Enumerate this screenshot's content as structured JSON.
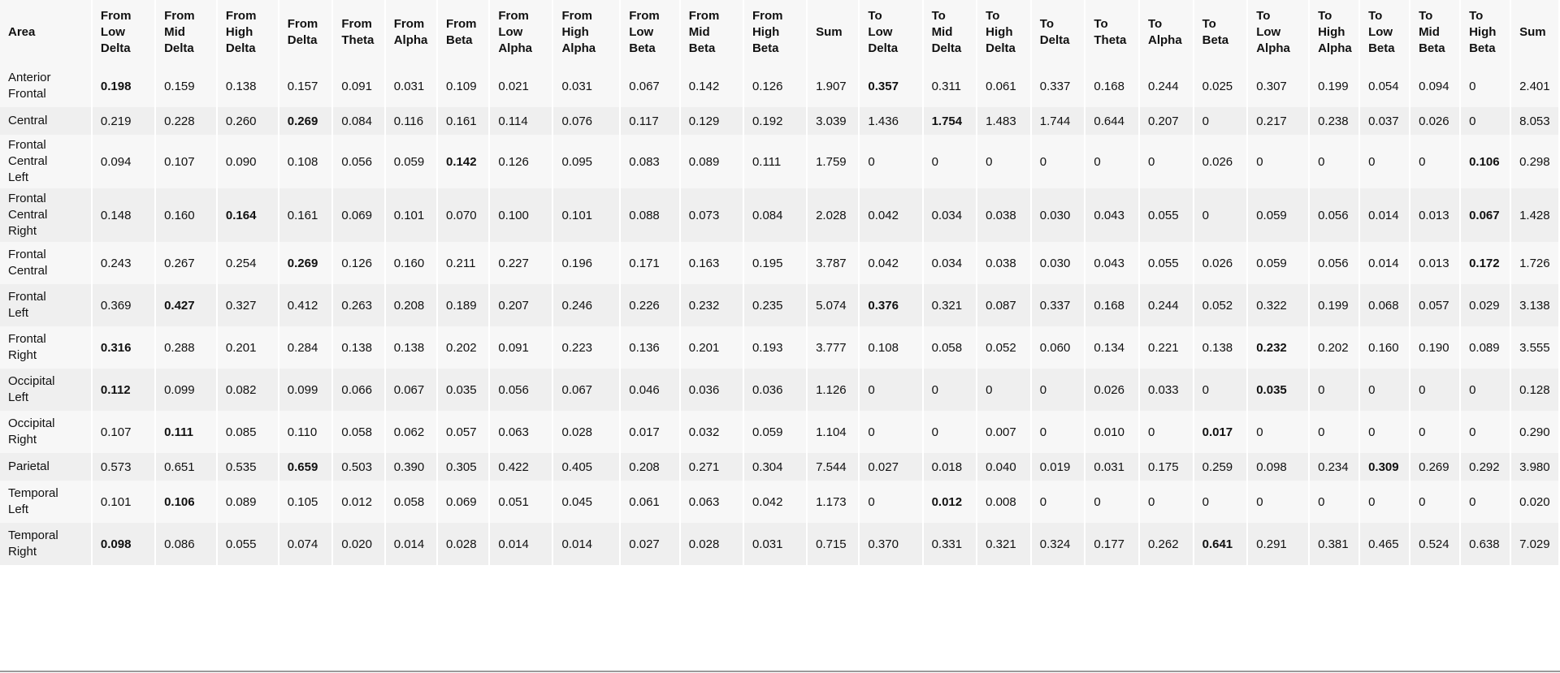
{
  "table": {
    "headers": [
      [
        "Area"
      ],
      [
        "From",
        "Low",
        "Delta"
      ],
      [
        "From",
        "Mid",
        "Delta"
      ],
      [
        "From",
        "High",
        "Delta"
      ],
      [
        "From",
        "Delta"
      ],
      [
        "From",
        "Theta"
      ],
      [
        "From",
        "Alpha"
      ],
      [
        "From",
        "Beta"
      ],
      [
        "From",
        "Low",
        "Alpha"
      ],
      [
        "From",
        "High",
        "Alpha"
      ],
      [
        "From",
        "Low",
        "Beta"
      ],
      [
        "From",
        "Mid",
        "Beta"
      ],
      [
        "From",
        "High",
        "Beta"
      ],
      [
        "Sum"
      ],
      [
        "To",
        "Low",
        "Delta"
      ],
      [
        "To",
        "Mid",
        "Delta"
      ],
      [
        "To",
        "High",
        "Delta"
      ],
      [
        "To",
        "Delta"
      ],
      [
        "To",
        "Theta"
      ],
      [
        "To",
        "Alpha"
      ],
      [
        "To",
        "Beta"
      ],
      [
        "To",
        "Low",
        "Alpha"
      ],
      [
        "To",
        "High",
        "Alpha"
      ],
      [
        "To",
        "Low",
        "Beta"
      ],
      [
        "To",
        "Mid",
        "Beta"
      ],
      [
        "To",
        "High",
        "Beta"
      ],
      [
        "Sum"
      ]
    ],
    "rows": [
      {
        "area": [
          "Anterior",
          "Frontal"
        ],
        "cells": [
          "0.198",
          "0.159",
          "0.138",
          "0.157",
          "0.091",
          "0.031",
          "0.109",
          "0.021",
          "0.031",
          "0.067",
          "0.142",
          "0.126",
          "1.907",
          "0.357",
          "0.311",
          "0.061",
          "0.337",
          "0.168",
          "0.244",
          "0.025",
          "0.307",
          "0.199",
          "0.054",
          "0.094",
          "0",
          "2.401"
        ],
        "bold": [
          0,
          13
        ]
      },
      {
        "area": [
          "Central"
        ],
        "cells": [
          "0.219",
          "0.228",
          "0.260",
          "0.269",
          "0.084",
          "0.116",
          "0.161",
          "0.114",
          "0.076",
          "0.117",
          "0.129",
          "0.192",
          "3.039",
          "1.436",
          "1.754",
          "1.483",
          "1.744",
          "0.644",
          "0.207",
          "0",
          "0.217",
          "0.238",
          "0.037",
          "0.026",
          "0",
          "8.053"
        ],
        "bold": [
          3,
          14
        ]
      },
      {
        "area": [
          "Frontal",
          "Central",
          "Left"
        ],
        "cells": [
          "0.094",
          "0.107",
          "0.090",
          "0.108",
          "0.056",
          "0.059",
          "0.142",
          "0.126",
          "0.095",
          "0.083",
          "0.089",
          "0.111",
          "1.759",
          "0",
          "0",
          "0",
          "0",
          "0",
          "0",
          "0.026",
          "0",
          "0",
          "0",
          "0",
          "0.106",
          "0.298"
        ],
        "bold": [
          6,
          24
        ]
      },
      {
        "area": [
          "Frontal",
          "Central",
          "Right"
        ],
        "cells": [
          "0.148",
          "0.160",
          "0.164",
          "0.161",
          "0.069",
          "0.101",
          "0.070",
          "0.100",
          "0.101",
          "0.088",
          "0.073",
          "0.084",
          "2.028",
          "0.042",
          "0.034",
          "0.038",
          "0.030",
          "0.043",
          "0.055",
          "0",
          "0.059",
          "0.056",
          "0.014",
          "0.013",
          "0.067",
          "1.428"
        ],
        "bold": [
          2,
          24
        ]
      },
      {
        "area": [
          "Frontal",
          "Central"
        ],
        "cells": [
          "0.243",
          "0.267",
          "0.254",
          "0.269",
          "0.126",
          "0.160",
          "0.211",
          "0.227",
          "0.196",
          "0.171",
          "0.163",
          "0.195",
          "3.787",
          "0.042",
          "0.034",
          "0.038",
          "0.030",
          "0.043",
          "0.055",
          "0.026",
          "0.059",
          "0.056",
          "0.014",
          "0.013",
          "0.172",
          "1.726"
        ],
        "bold": [
          3,
          24
        ]
      },
      {
        "area": [
          "Frontal",
          "Left"
        ],
        "cells": [
          "0.369",
          "0.427",
          "0.327",
          "0.412",
          "0.263",
          "0.208",
          "0.189",
          "0.207",
          "0.246",
          "0.226",
          "0.232",
          "0.235",
          "5.074",
          "0.376",
          "0.321",
          "0.087",
          "0.337",
          "0.168",
          "0.244",
          "0.052",
          "0.322",
          "0.199",
          "0.068",
          "0.057",
          "0.029",
          "3.138"
        ],
        "bold": [
          1,
          13
        ]
      },
      {
        "area": [
          "Frontal",
          "Right"
        ],
        "cells": [
          "0.316",
          "0.288",
          "0.201",
          "0.284",
          "0.138",
          "0.138",
          "0.202",
          "0.091",
          "0.223",
          "0.136",
          "0.201",
          "0.193",
          "3.777",
          "0.108",
          "0.058",
          "0.052",
          "0.060",
          "0.134",
          "0.221",
          "0.138",
          "0.232",
          "0.202",
          "0.160",
          "0.190",
          "0.089",
          "3.555"
        ],
        "bold": [
          0,
          20
        ]
      },
      {
        "area": [
          "Occipital",
          "Left"
        ],
        "cells": [
          "0.112",
          "0.099",
          "0.082",
          "0.099",
          "0.066",
          "0.067",
          "0.035",
          "0.056",
          "0.067",
          "0.046",
          "0.036",
          "0.036",
          "1.126",
          "0",
          "0",
          "0",
          "0",
          "0.026",
          "0.033",
          "0",
          "0.035",
          "0",
          "0",
          "0",
          "0",
          "0.128"
        ],
        "bold": [
          0,
          20
        ]
      },
      {
        "area": [
          "Occipital",
          "Right"
        ],
        "cells": [
          "0.107",
          "0.111",
          "0.085",
          "0.110",
          "0.058",
          "0.062",
          "0.057",
          "0.063",
          "0.028",
          "0.017",
          "0.032",
          "0.059",
          "1.104",
          "0",
          "0",
          "0.007",
          "0",
          "0.010",
          "0",
          "0.017",
          "0",
          "0",
          "0",
          "0",
          "0",
          "0.290"
        ],
        "bold": [
          1,
          19
        ]
      },
      {
        "area": [
          "Parietal"
        ],
        "cells": [
          "0.573",
          "0.651",
          "0.535",
          "0.659",
          "0.503",
          "0.390",
          "0.305",
          "0.422",
          "0.405",
          "0.208",
          "0.271",
          "0.304",
          "7.544",
          "0.027",
          "0.018",
          "0.040",
          "0.019",
          "0.031",
          "0.175",
          "0.259",
          "0.098",
          "0.234",
          "0.309",
          "0.269",
          "0.292",
          "3.980"
        ],
        "bold": [
          3,
          22
        ]
      },
      {
        "area": [
          "Temporal",
          "Left"
        ],
        "cells": [
          "0.101",
          "0.106",
          "0.089",
          "0.105",
          "0.012",
          "0.058",
          "0.069",
          "0.051",
          "0.045",
          "0.061",
          "0.063",
          "0.042",
          "1.173",
          "0",
          "0.012",
          "0.008",
          "0",
          "0",
          "0",
          "0",
          "0",
          "0",
          "0",
          "0",
          "0",
          "0.020"
        ],
        "bold": [
          1,
          14
        ]
      },
      {
        "area": [
          "Temporal",
          "Right"
        ],
        "cells": [
          "0.098",
          "0.086",
          "0.055",
          "0.074",
          "0.020",
          "0.014",
          "0.028",
          "0.014",
          "0.014",
          "0.027",
          "0.028",
          "0.031",
          "0.715",
          "0.370",
          "0.331",
          "0.321",
          "0.324",
          "0.177",
          "0.262",
          "0.641",
          "0.291",
          "0.381",
          "0.465",
          "0.524",
          "0.638",
          "7.029"
        ],
        "bold": [
          0,
          19
        ]
      }
    ]
  }
}
